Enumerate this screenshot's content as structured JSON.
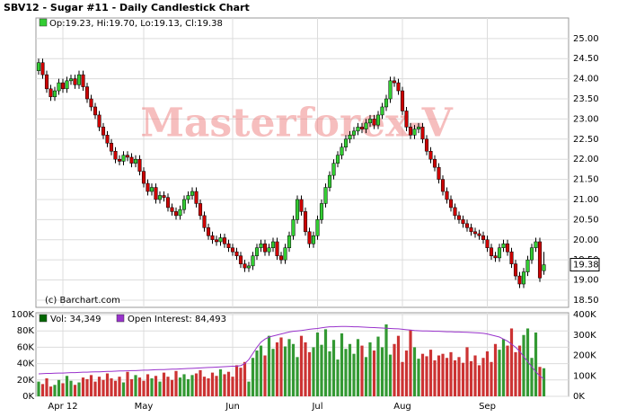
{
  "chart_data": [
    {
      "type": "candlestick",
      "title": "SBV12 - Sugar #11 - Daily Candlestick Chart",
      "legend_text": "Op:19.23, Hi:19.70, Lo:19.13, Cl:19.38",
      "watermark": "Masterforex-V",
      "credit": "(c) Barchart.com",
      "up_color": "#33cc33",
      "down_color": "#cc0000",
      "legend_color": "#33cc33",
      "categories": [
        null,
        null,
        null,
        null,
        null,
        null,
        null,
        null,
        null,
        null,
        null,
        null,
        null,
        null,
        null,
        null,
        null,
        null,
        null,
        null,
        null,
        null,
        null,
        null,
        null,
        null,
        null,
        null,
        null,
        null,
        null,
        null,
        null,
        null,
        null,
        null,
        null,
        null,
        null,
        null,
        null,
        null,
        null,
        null,
        null,
        null,
        null,
        null,
        null,
        null,
        null,
        null,
        null,
        null,
        null,
        null,
        null,
        null,
        null,
        null,
        null,
        null,
        null,
        null,
        null,
        null,
        null,
        null,
        null,
        null,
        null,
        null,
        null,
        null,
        null,
        null,
        null,
        null,
        null,
        null,
        null,
        null,
        null,
        null,
        null,
        null,
        null,
        null,
        null,
        null,
        null,
        null,
        null,
        null,
        null,
        null,
        null,
        null,
        null,
        null,
        null,
        null,
        null,
        null,
        null,
        null,
        null,
        null,
        null,
        null,
        null,
        null,
        null,
        null,
        null,
        null,
        null,
        null,
        null,
        null,
        null,
        null,
        null,
        null,
        null,
        null
      ],
      "open": [
        24.2,
        24.4,
        24.1,
        23.75,
        23.55,
        23.7,
        23.9,
        23.75,
        23.95,
        24.0,
        23.85,
        24.1,
        23.8,
        23.5,
        23.3,
        23.1,
        22.8,
        22.6,
        22.4,
        22.2,
        22.0,
        21.95,
        22.1,
        22.05,
        21.9,
        22.0,
        21.7,
        21.4,
        21.2,
        21.3,
        21.0,
        21.1,
        21.05,
        20.8,
        20.7,
        20.6,
        20.75,
        21.0,
        21.1,
        21.2,
        20.9,
        20.6,
        20.3,
        20.1,
        20.0,
        19.95,
        20.05,
        19.9,
        19.8,
        19.7,
        19.6,
        19.4,
        19.3,
        19.35,
        19.6,
        19.8,
        19.9,
        19.7,
        19.8,
        19.95,
        19.6,
        19.5,
        19.8,
        20.1,
        20.5,
        21.0,
        20.7,
        20.2,
        19.9,
        20.1,
        20.5,
        20.9,
        21.3,
        21.6,
        21.9,
        22.1,
        22.3,
        22.5,
        22.6,
        22.7,
        22.8,
        22.75,
        22.9,
        23.0,
        22.85,
        23.1,
        23.3,
        23.5,
        23.95,
        23.9,
        23.7,
        23.2,
        22.8,
        22.6,
        22.75,
        22.8,
        22.5,
        22.2,
        22.0,
        21.8,
        21.5,
        21.2,
        21.0,
        20.8,
        20.6,
        20.5,
        20.4,
        20.3,
        20.2,
        20.15,
        20.1,
        20.0,
        19.8,
        19.6,
        19.55,
        19.8,
        19.9,
        19.7,
        19.4,
        19.1,
        18.9,
        19.2,
        19.5,
        19.8,
        19.95,
        19.23
      ],
      "high": [
        24.5,
        24.5,
        24.2,
        23.85,
        23.8,
        24.0,
        24.0,
        24.05,
        24.1,
        24.1,
        24.2,
        24.2,
        23.9,
        23.6,
        23.4,
        23.2,
        22.9,
        22.7,
        22.5,
        22.3,
        22.1,
        22.2,
        22.2,
        22.15,
        22.1,
        22.1,
        21.8,
        21.5,
        21.4,
        21.4,
        21.2,
        21.2,
        21.15,
        20.9,
        20.8,
        20.85,
        21.1,
        21.2,
        21.3,
        21.3,
        21.0,
        20.7,
        20.4,
        20.2,
        20.1,
        20.15,
        20.15,
        20.0,
        19.9,
        19.8,
        19.7,
        19.5,
        19.45,
        19.7,
        19.9,
        20.0,
        20.0,
        19.9,
        20.05,
        20.05,
        19.7,
        19.9,
        20.2,
        20.6,
        21.1,
        21.1,
        20.8,
        20.3,
        20.2,
        20.6,
        21.0,
        21.4,
        21.7,
        22.0,
        22.2,
        22.4,
        22.6,
        22.7,
        22.8,
        22.9,
        22.9,
        23.0,
        23.1,
        23.1,
        23.2,
        23.4,
        23.6,
        24.05,
        24.05,
        24.0,
        23.8,
        23.3,
        22.9,
        22.85,
        22.9,
        22.9,
        22.6,
        22.3,
        22.1,
        21.9,
        21.6,
        21.3,
        21.1,
        20.9,
        20.7,
        20.6,
        20.5,
        20.4,
        20.3,
        20.25,
        20.2,
        20.1,
        19.9,
        19.7,
        19.9,
        20.0,
        20.0,
        19.8,
        19.5,
        19.2,
        19.3,
        19.6,
        19.9,
        20.05,
        20.05,
        19.7
      ],
      "low": [
        24.1,
        24.0,
        23.65,
        23.45,
        23.45,
        23.6,
        23.65,
        23.65,
        23.85,
        23.75,
        23.75,
        23.7,
        23.4,
        23.2,
        23.0,
        22.7,
        22.5,
        22.3,
        22.1,
        21.9,
        21.85,
        21.85,
        21.95,
        21.8,
        21.8,
        21.6,
        21.3,
        21.1,
        21.1,
        20.9,
        20.9,
        20.95,
        20.7,
        20.6,
        20.5,
        20.5,
        20.65,
        20.9,
        21.0,
        20.8,
        20.5,
        20.2,
        20.0,
        19.9,
        19.85,
        19.85,
        19.8,
        19.7,
        19.6,
        19.5,
        19.3,
        19.2,
        19.2,
        19.25,
        19.5,
        19.7,
        19.6,
        19.6,
        19.7,
        19.5,
        19.4,
        19.4,
        19.7,
        20.0,
        20.4,
        20.6,
        20.1,
        19.8,
        19.8,
        20.0,
        20.4,
        20.8,
        21.2,
        21.5,
        21.8,
        22.0,
        22.2,
        22.4,
        22.5,
        22.6,
        22.65,
        22.65,
        22.8,
        22.75,
        22.75,
        23.0,
        23.2,
        23.4,
        23.8,
        23.6,
        23.1,
        22.7,
        22.5,
        22.5,
        22.65,
        22.4,
        22.1,
        21.9,
        21.7,
        21.4,
        21.1,
        20.9,
        20.7,
        20.5,
        20.4,
        20.3,
        20.2,
        20.1,
        20.05,
        20.0,
        19.9,
        19.7,
        19.5,
        19.45,
        19.45,
        19.7,
        19.6,
        19.3,
        19.0,
        18.8,
        18.8,
        19.1,
        19.4,
        19.7,
        18.95,
        19.13
      ],
      "close": [
        24.4,
        24.1,
        23.75,
        23.55,
        23.7,
        23.9,
        23.75,
        23.95,
        24.0,
        23.85,
        24.1,
        23.8,
        23.5,
        23.3,
        23.1,
        22.8,
        22.6,
        22.4,
        22.2,
        22.0,
        21.95,
        22.1,
        22.05,
        21.9,
        22.0,
        21.7,
        21.4,
        21.2,
        21.3,
        21.0,
        21.1,
        21.05,
        20.8,
        20.7,
        20.6,
        20.75,
        21.0,
        21.1,
        21.2,
        20.9,
        20.6,
        20.3,
        20.1,
        20.0,
        19.95,
        20.05,
        19.9,
        19.8,
        19.7,
        19.6,
        19.4,
        19.3,
        19.35,
        19.6,
        19.8,
        19.9,
        19.7,
        19.8,
        19.95,
        19.6,
        19.5,
        19.8,
        20.1,
        20.5,
        21.0,
        20.7,
        20.2,
        19.9,
        20.1,
        20.5,
        20.9,
        21.3,
        21.6,
        21.9,
        22.1,
        22.3,
        22.5,
        22.6,
        22.7,
        22.8,
        22.75,
        22.9,
        23.0,
        22.85,
        23.1,
        23.3,
        23.5,
        23.95,
        23.9,
        23.7,
        23.2,
        22.8,
        22.6,
        22.75,
        22.8,
        22.5,
        22.2,
        22.0,
        21.8,
        21.5,
        21.2,
        21.0,
        20.8,
        20.6,
        20.5,
        20.4,
        20.3,
        20.2,
        20.15,
        20.1,
        20.0,
        19.8,
        19.6,
        19.55,
        19.8,
        19.9,
        19.7,
        19.4,
        19.1,
        18.9,
        19.2,
        19.5,
        19.8,
        19.95,
        19.05,
        19.38
      ],
      "ylim": [
        18.32,
        25.51
      ],
      "yticks": [
        {
          "value": 18.5,
          "label": "18.50"
        },
        {
          "value": 19,
          "label": "19.00"
        },
        {
          "value": 19.5,
          "label": "19.50"
        },
        {
          "value": 20,
          "label": "20.00"
        },
        {
          "value": 20.5,
          "label": "20.50"
        },
        {
          "value": 21,
          "label": "21.00"
        },
        {
          "value": 21.5,
          "label": "21.50"
        },
        {
          "value": 22,
          "label": "22.00"
        },
        {
          "value": 22.5,
          "label": "22.50"
        },
        {
          "value": 23,
          "label": "23.00"
        },
        {
          "value": 23.5,
          "label": "23.50"
        },
        {
          "value": 24,
          "label": "24.00"
        },
        {
          "value": 24.5,
          "label": "24.50"
        },
        {
          "value": 25,
          "label": "25.00"
        }
      ],
      "grid": true
    },
    {
      "type": "bar",
      "series": [
        {
          "name": "Vol: 34,349",
          "color": "#006600",
          "values": [
            18000,
            15000,
            22000,
            12000,
            14000,
            20000,
            16000,
            25000,
            19000,
            14000,
            17000,
            23000,
            21000,
            26000,
            18000,
            24000,
            20000,
            28000,
            22000,
            19000,
            24000,
            17000,
            30000,
            21000,
            26000,
            23000,
            19000,
            27000,
            22000,
            25000,
            18000,
            29000,
            24000,
            20000,
            31000,
            23000,
            27000,
            21000,
            26000,
            28000,
            32000,
            24000,
            22000,
            29000,
            25000,
            33000,
            27000,
            30000,
            24000,
            38000,
            35000,
            42000,
            18000,
            47000,
            56000,
            62000,
            50000,
            74000,
            58000,
            66000,
            72000,
            61000,
            70000,
            64000,
            48000,
            74000,
            66000,
            54000,
            60000,
            78000,
            63000,
            82000,
            55000,
            69000,
            45000,
            77000,
            58000,
            64000,
            52000,
            70000,
            62000,
            48000,
            66000,
            56000,
            73000,
            60000,
            88000,
            51000,
            64000,
            74000,
            42000,
            56000,
            81000,
            60000,
            46000,
            52000,
            49000,
            57000,
            44000,
            50000,
            52000,
            47000,
            54000,
            44000,
            48000,
            41000,
            60000,
            43000,
            50000,
            38000,
            47000,
            55000,
            42000,
            64000,
            57000,
            70000,
            62000,
            83000,
            54000,
            62000,
            75000,
            83000,
            47000,
            78000,
            36000,
            34349
          ]
        },
        {
          "name": "Open Interest: 84,493",
          "color": "#9933cc",
          "axis": "y2",
          "values": [
            110000,
            111000,
            112000,
            112000,
            113000,
            114000,
            114000,
            115000,
            116000,
            116000,
            117000,
            118000,
            118000,
            119000,
            120000,
            120000,
            121000,
            122000,
            122000,
            123000,
            124000,
            124000,
            125000,
            126000,
            126000,
            127000,
            128000,
            128000,
            129000,
            130000,
            131000,
            131000,
            132000,
            133000,
            133000,
            134000,
            135000,
            136000,
            137000,
            138000,
            139000,
            140000,
            141000,
            142000,
            143000,
            144000,
            145000,
            146000,
            147000,
            148000,
            150000,
            160000,
            180000,
            210000,
            240000,
            265000,
            280000,
            290000,
            295000,
            300000,
            305000,
            310000,
            315000,
            318000,
            320000,
            322000,
            325000,
            328000,
            330000,
            332000,
            335000,
            338000,
            340000,
            340000,
            341000,
            342000,
            342000,
            341000,
            340000,
            340000,
            339000,
            338000,
            337000,
            336000,
            335000,
            334000,
            333000,
            332000,
            331000,
            330000,
            328000,
            326000,
            324000,
            322000,
            321000,
            320000,
            320000,
            319000,
            318000,
            318000,
            317000,
            316000,
            316000,
            315000,
            315000,
            314000,
            313000,
            312000,
            311000,
            310000,
            308000,
            305000,
            300000,
            295000,
            290000,
            280000,
            270000,
            255000,
            240000,
            220000,
            195000,
            170000,
            145000,
            120000,
            100000,
            84493
          ]
        }
      ],
      "xticks": [
        {
          "value": 6,
          "label": "Apr 12"
        },
        {
          "value": 26,
          "label": "May"
        },
        {
          "value": 48,
          "label": "Jun"
        },
        {
          "value": 69,
          "label": "Jul"
        },
        {
          "value": 90,
          "label": "Aug"
        },
        {
          "value": 111,
          "label": "Sep"
        }
      ],
      "ylim": [
        0,
        100000
      ],
      "yticks": [
        {
          "value": 0,
          "label": "0K"
        },
        {
          "value": 20000,
          "label": "20K"
        },
        {
          "value": 40000,
          "label": "40K"
        },
        {
          "value": 60000,
          "label": "60K"
        },
        {
          "value": 80000,
          "label": "80K"
        },
        {
          "value": 100000,
          "label": "100K"
        }
      ],
      "y2lim": [
        0,
        400000
      ],
      "y2ticks": [
        {
          "value": 0,
          "label": "0K"
        },
        {
          "value": 100000,
          "label": "100K"
        },
        {
          "value": 200000,
          "label": "200K"
        },
        {
          "value": 300000,
          "label": "300K"
        },
        {
          "value": 400000,
          "label": "400K"
        }
      ],
      "grid": true
    }
  ]
}
